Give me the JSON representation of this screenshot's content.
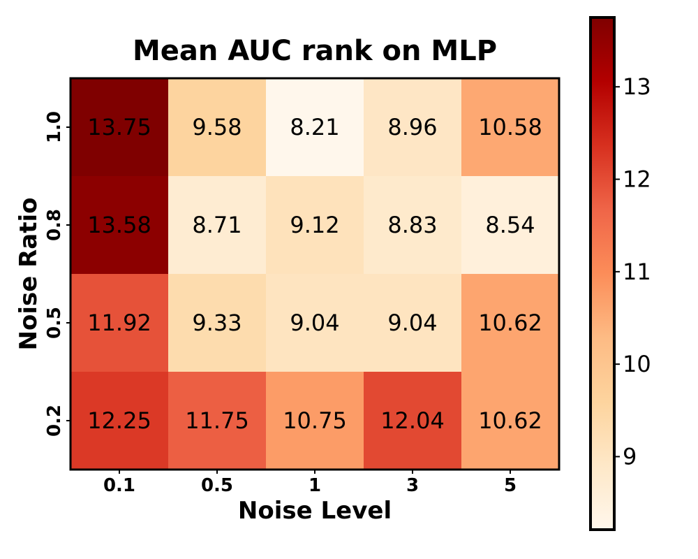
{
  "chart_data": {
    "type": "heatmap",
    "title": "Mean AUC rank on MLP",
    "xlabel": "Noise Level",
    "ylabel": "Noise Ratio",
    "x_categories": [
      "0.1",
      "0.5",
      "1",
      "3",
      "5"
    ],
    "y_categories": [
      "1.0",
      "0.8",
      "0.5",
      "0.2"
    ],
    "values": [
      [
        13.75,
        9.58,
        8.21,
        8.96,
        10.58
      ],
      [
        13.58,
        8.71,
        9.12,
        8.83,
        8.54
      ],
      [
        11.92,
        9.33,
        9.04,
        9.04,
        10.62
      ],
      [
        12.25,
        11.75,
        10.75,
        12.04,
        10.62
      ]
    ],
    "cell_labels": [
      [
        "13.75",
        "9.58",
        "8.21",
        "8.96",
        "10.58"
      ],
      [
        "13.58",
        "8.71",
        "9.12",
        "8.83",
        "8.54"
      ],
      [
        "11.92",
        "9.33",
        "9.04",
        "9.04",
        "10.62"
      ],
      [
        "12.25",
        "11.75",
        "10.75",
        "12.04",
        "10.62"
      ]
    ],
    "colormap": "OrRd",
    "colorbar": {
      "vmin": 8.21,
      "vmax": 13.75,
      "ticks": [
        9,
        10,
        11,
        12,
        13
      ],
      "tick_labels": [
        "9",
        "10",
        "11",
        "12",
        "13"
      ]
    },
    "colormap_stops": [
      "#fff7ec",
      "#fee8c8",
      "#fdd49e",
      "#fdbb84",
      "#fc8d59",
      "#ef6548",
      "#d7301f",
      "#b30000",
      "#7f0000"
    ]
  }
}
